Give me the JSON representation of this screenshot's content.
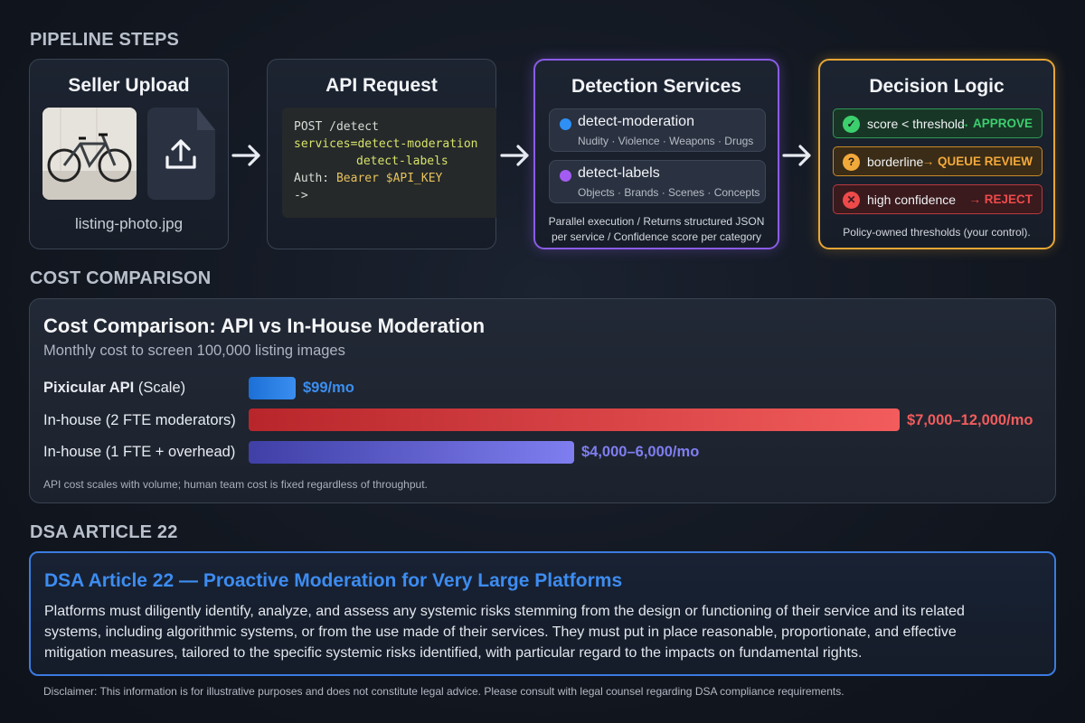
{
  "sections": {
    "pipeline": "PIPELINE STEPS",
    "cost": "COST COMPARISON",
    "dsa": "DSA ARTICLE 22"
  },
  "pipeline": {
    "upload": {
      "title": "Seller Upload",
      "filename": "listing-photo.jpg",
      "icons": [
        "bicycle-photo",
        "upload-file-icon"
      ]
    },
    "api": {
      "title": "API Request",
      "code": {
        "line1": "POST /detect",
        "line2_key": "services=",
        "line2_val": "detect-moderation",
        "line3_val": "detect-labels",
        "line4_key": "Auth: ",
        "line4_val": "Bearer $API_KEY",
        "line5": "->"
      }
    },
    "detection": {
      "title": "Detection Services",
      "services": [
        {
          "name": "detect-moderation",
          "detail": "Nudity · Violence · Weapons · Drugs",
          "color": "#2e90f5"
        },
        {
          "name": "detect-labels",
          "detail": "Objects · Brands · Scenes · Concepts",
          "color": "#a35cf2"
        }
      ],
      "note_line1": "Parallel execution / Returns structured JSON",
      "note_line2": "per service / Confidence score per category"
    },
    "decision": {
      "title": "Decision Logic",
      "rules": [
        {
          "condition": "score < threshold",
          "outcome": "→ APPROVE",
          "icon": "check-icon",
          "color": "#3ccf6e"
        },
        {
          "condition": "borderline",
          "outcome": "→ QUEUE REVIEW",
          "icon": "question-icon",
          "color": "#f3a93a"
        },
        {
          "condition": "high confidence",
          "outcome": "→ REJECT",
          "icon": "x-icon",
          "color": "#ef4a4a"
        }
      ],
      "note": "Policy-owned thresholds (your control)."
    }
  },
  "cost": {
    "title": "Cost Comparison: API vs In-House Moderation",
    "subtitle": "Monthly cost to screen 100,000 listing images",
    "rows": [
      {
        "label_bold": "Pixicular API",
        "label_rest": " (Scale)",
        "value": "$99/mo",
        "color": "#3b8ef0"
      },
      {
        "label_bold": "",
        "label_rest": "In-house (2 FTE moderators)",
        "value": "$7,000–12,000/mo",
        "color": "#f25c5c"
      },
      {
        "label_bold": "",
        "label_rest": "In-house (1 FTE + overhead)",
        "value": "$4,000–6,000/mo",
        "color": "#7f7ef0"
      }
    ],
    "note": "API cost scales with volume; human team cost is fixed regardless of throughput."
  },
  "chart_data": {
    "type": "bar",
    "title": "Cost Comparison: API vs In-House Moderation",
    "subtitle": "Monthly cost to screen 100,000 listing images",
    "categories": [
      "Pixicular API (Scale)",
      "In-house (2 FTE moderators)",
      "In-house (1 FTE + overhead)"
    ],
    "values": [
      99,
      12000,
      6000
    ],
    "value_labels": [
      "$99/mo",
      "$7,000–12,000/mo",
      "$4,000–6,000/mo"
    ],
    "orientation": "horizontal",
    "xlim": [
      0,
      12000
    ]
  },
  "dsa": {
    "title": "DSA Article 22 — Proactive Moderation for Very Large Platforms",
    "line1": "Platforms must diligently identify, analyze, and assess any systemic risks stemming from the design or functioning of their service and its related",
    "line2": "systems, including algorithmic systems, or from the use made of their services. They must put in place reasonable, proportionate, and effective",
    "line3": "mitigation measures, tailored to the specific systemic risks identified, with particular regard to the impacts on fundamental rights."
  },
  "disclaimer": "Disclaimer: This information is for illustrative purposes and does not constitute legal advice. Please consult with legal counsel regarding DSA compliance requirements."
}
